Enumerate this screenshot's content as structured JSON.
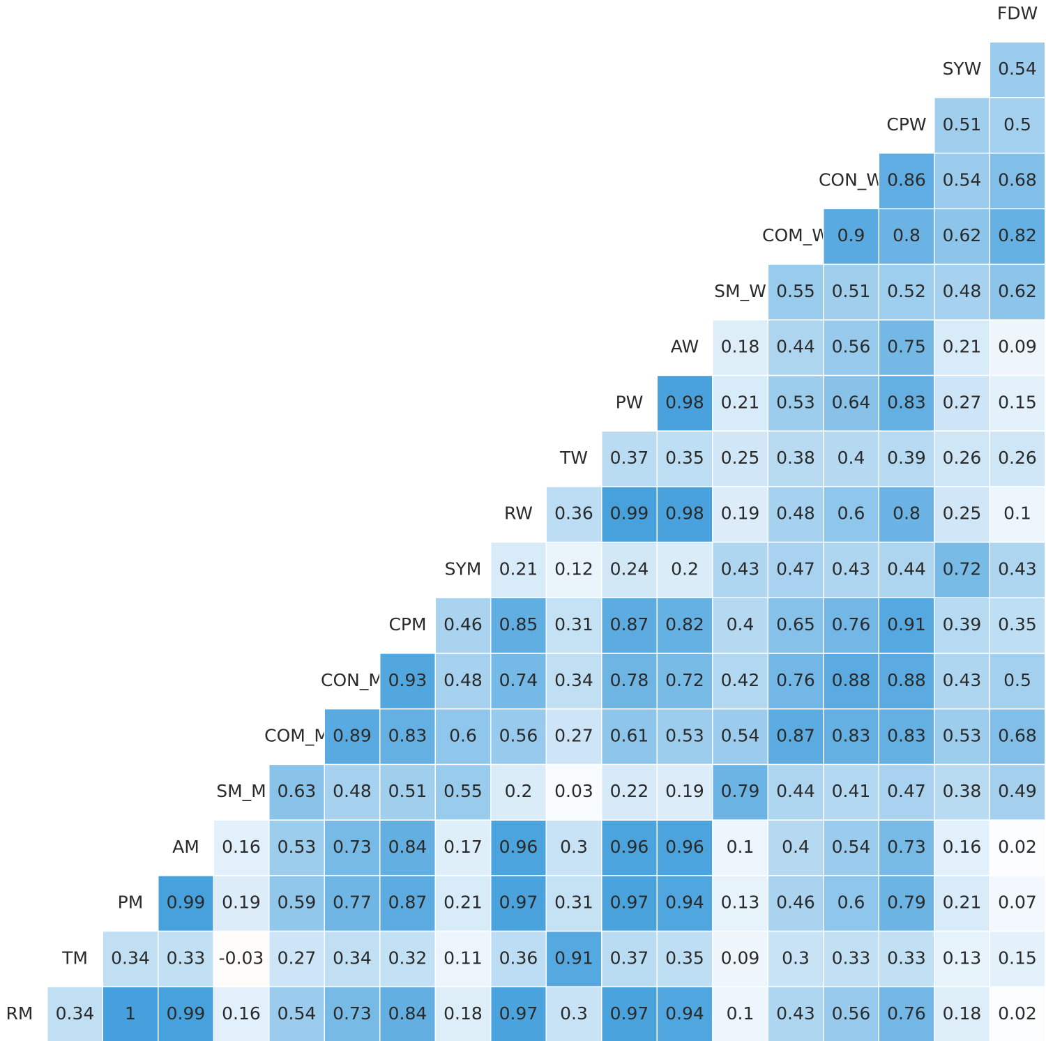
{
  "chart_data": {
    "type": "heatmap",
    "variables": [
      "RM",
      "TM",
      "PM",
      "AM",
      "SM_M",
      "COM_M",
      "CON_M",
      "CPM",
      "SYM",
      "RW",
      "TW",
      "PW",
      "AW",
      "SM_W",
      "COM_W",
      "CON_W",
      "CPW",
      "SYW",
      "FDW"
    ],
    "matrix": [
      [
        0.34,
        1,
        0.99,
        0.16,
        0.54,
        0.73,
        0.84,
        0.18,
        0.97,
        0.3,
        0.97,
        0.94,
        0.1,
        0.43,
        0.56,
        0.76,
        0.18,
        0.02
      ],
      [
        0.34,
        0.33,
        -0.03,
        0.27,
        0.34,
        0.32,
        0.11,
        0.36,
        0.91,
        0.37,
        0.35,
        0.09,
        0.3,
        0.33,
        0.33,
        0.13,
        0.15
      ],
      [
        0.99,
        0.19,
        0.59,
        0.77,
        0.87,
        0.21,
        0.97,
        0.31,
        0.97,
        0.94,
        0.13,
        0.46,
        0.6,
        0.79,
        0.21,
        0.07
      ],
      [
        0.16,
        0.53,
        0.73,
        0.84,
        0.17,
        0.96,
        0.3,
        0.96,
        0.96,
        0.1,
        0.4,
        0.54,
        0.73,
        0.16,
        0.02
      ],
      [
        0.63,
        0.48,
        0.51,
        0.55,
        0.2,
        0.03,
        0.22,
        0.19,
        0.79,
        0.44,
        0.41,
        0.47,
        0.38,
        0.49
      ],
      [
        0.89,
        0.83,
        0.6,
        0.56,
        0.27,
        0.61,
        0.53,
        0.54,
        0.87,
        0.83,
        0.83,
        0.53,
        0.68
      ],
      [
        0.93,
        0.48,
        0.74,
        0.34,
        0.78,
        0.72,
        0.42,
        0.76,
        0.88,
        0.88,
        0.43,
        0.5
      ],
      [
        0.46,
        0.85,
        0.31,
        0.87,
        0.82,
        0.4,
        0.65,
        0.76,
        0.91,
        0.39,
        0.35
      ],
      [
        0.21,
        0.12,
        0.24,
        0.2,
        0.43,
        0.47,
        0.43,
        0.44,
        0.72,
        0.43
      ],
      [
        0.36,
        0.99,
        0.98,
        0.19,
        0.48,
        0.6,
        0.8,
        0.25,
        0.1
      ],
      [
        0.37,
        0.35,
        0.25,
        0.38,
        0.4,
        0.39,
        0.26,
        0.26
      ],
      [
        0.98,
        0.21,
        0.53,
        0.64,
        0.83,
        0.27,
        0.15
      ],
      [
        0.18,
        0.44,
        0.56,
        0.75,
        0.21,
        0.09
      ],
      [
        0.55,
        0.51,
        0.52,
        0.48,
        0.62
      ],
      [
        0.9,
        0.8,
        0.62,
        0.82
      ],
      [
        0.86,
        0.54,
        0.68
      ],
      [
        0.51,
        0.5
      ],
      [
        0.54
      ],
      []
    ],
    "color_high": "#45a0dd",
    "color_mid": "#ffffff",
    "color_low": "#e8956a"
  }
}
